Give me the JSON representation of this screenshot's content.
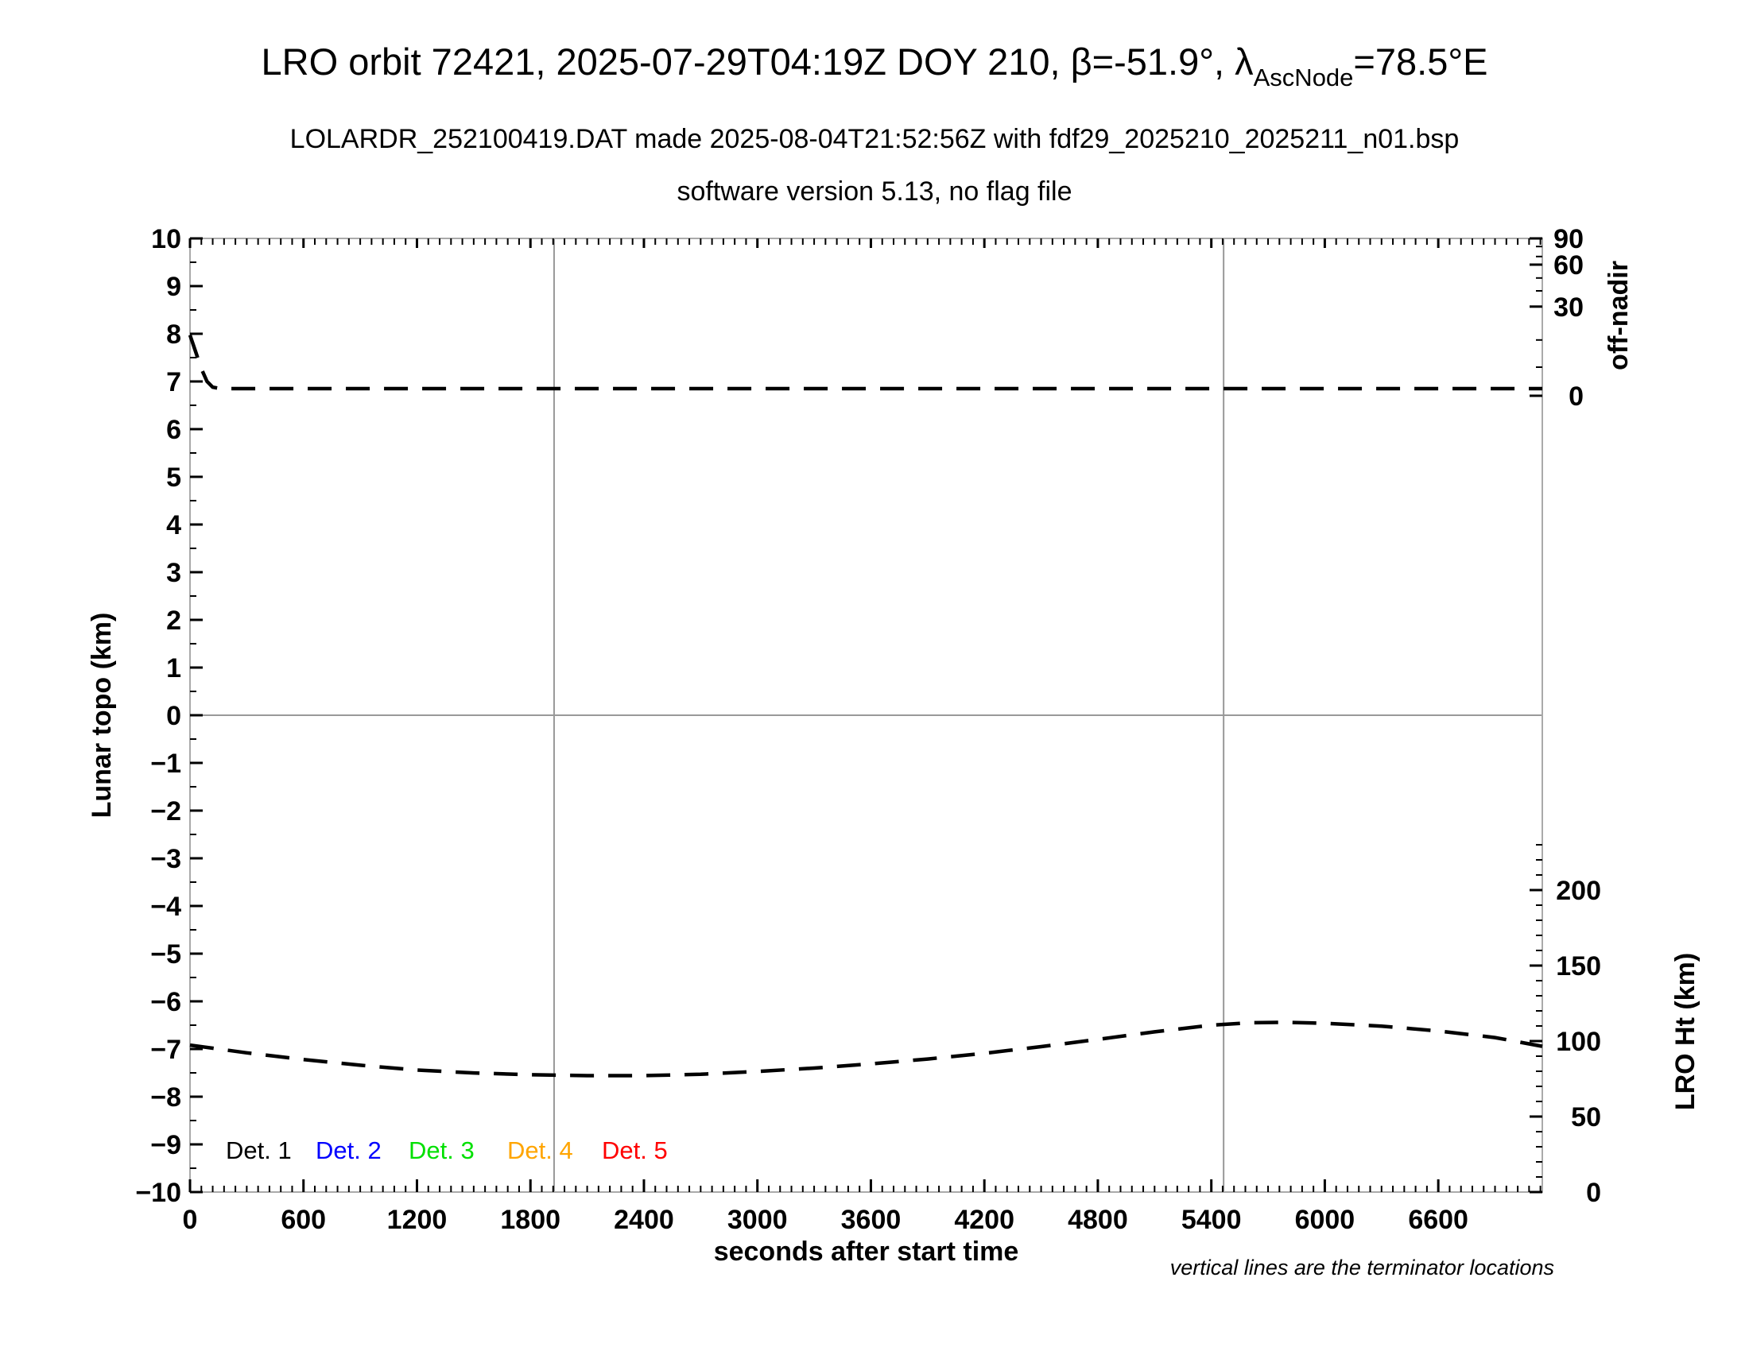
{
  "chart_data": {
    "type": "line",
    "title": {
      "part1": "LRO orbit 72421, 2025-07-29T04:19Z DOY 210, β=-51.9°, λ",
      "subscript": "AscNode",
      "part2": "=78.5°E"
    },
    "subtitle": "LOLARDR_252100419.DAT made 2025-08-04T21:52:56Z with fdf29_2025210_2025211_n01.bsp",
    "version_line": "software version 5.13, no flag file",
    "footnote": "vertical lines are the terminator locations",
    "x_axis": {
      "label": "seconds after start time",
      "min": 0,
      "max": 7150,
      "major_tick_step": 600,
      "minor_tick_step": 60,
      "tick_values": [
        0,
        600,
        1200,
        1800,
        2400,
        3000,
        3600,
        4200,
        4800,
        5400,
        6000,
        6600
      ]
    },
    "y_axis_left": {
      "label": "Lunar topo (km)",
      "min": -10,
      "max": 10,
      "major_tick_step": 1,
      "minor_tick_step": 0.5
    },
    "y_axis_right_top": {
      "label": "off-nadir",
      "unit": "deg",
      "major_ticks": [
        {
          "value": 90,
          "topo": 10.0
        },
        {
          "value": 60,
          "topo": 9.45
        },
        {
          "value": 30,
          "topo": 8.57
        },
        {
          "value": 0,
          "topo": 6.7
        }
      ],
      "minor_ticks": [
        {
          "value": 80,
          "topo": 9.83
        },
        {
          "value": 70,
          "topo": 9.62
        },
        {
          "value": 50,
          "topo": 9.17
        },
        {
          "value": 40,
          "topo": 8.9
        },
        {
          "value": 20,
          "topo": 7.87
        },
        {
          "value": 10,
          "topo": 7.3
        }
      ]
    },
    "y_axis_right_bottom": {
      "label": "LRO Ht (km)",
      "tick_values": [
        0,
        50,
        100,
        150,
        200
      ],
      "minor_tick_step": 10,
      "minor_tick_max": 230,
      "topo_at_zero": -10,
      "topo_per_km": 0.0316667
    },
    "zero_line_topo": 0,
    "terminator_lines_s": [
      1925,
      5465
    ],
    "grid_color": "#999999",
    "frame_color": "#aaaaaa",
    "series": [
      {
        "name": "off-nadir angle",
        "color": "#000000",
        "line_style": "dashed",
        "unit": "deg",
        "points_t_deg": [
          [
            0,
            20.4
          ],
          [
            30,
            14.8
          ],
          [
            60,
            9.1
          ],
          [
            90,
            4.8
          ],
          [
            120,
            2.9
          ],
          [
            160,
            2.4
          ],
          [
            7150,
            2.4
          ]
        ]
      },
      {
        "name": "LRO height",
        "color": "#000000",
        "line_style": "dashed",
        "unit": "km",
        "points_t_km": [
          [
            0,
            97.3
          ],
          [
            300,
            92.2
          ],
          [
            600,
            87.8
          ],
          [
            900,
            84.0
          ],
          [
            1200,
            80.8
          ],
          [
            1500,
            78.9
          ],
          [
            1800,
            77.7
          ],
          [
            2100,
            77.1
          ],
          [
            2400,
            77.1
          ],
          [
            2700,
            78.0
          ],
          [
            3000,
            79.9
          ],
          [
            3300,
            82.1
          ],
          [
            3600,
            84.9
          ],
          [
            3900,
            88.1
          ],
          [
            4200,
            91.9
          ],
          [
            4500,
            96.3
          ],
          [
            4800,
            101.1
          ],
          [
            5100,
            106.1
          ],
          [
            5400,
            110.5
          ],
          [
            5600,
            112.1
          ],
          [
            5800,
            112.4
          ],
          [
            6000,
            111.8
          ],
          [
            6300,
            109.9
          ],
          [
            6600,
            106.7
          ],
          [
            6900,
            102.3
          ],
          [
            7150,
            96.5
          ]
        ]
      }
    ],
    "legend": [
      {
        "label": "Det. 1",
        "color": "#000000"
      },
      {
        "label": "Det. 2",
        "color": "#0000ff"
      },
      {
        "label": "Det. 3",
        "color": "#00e000"
      },
      {
        "label": "Det. 4",
        "color": "#ffa500"
      },
      {
        "label": "Det. 5",
        "color": "#ff0000"
      }
    ]
  }
}
